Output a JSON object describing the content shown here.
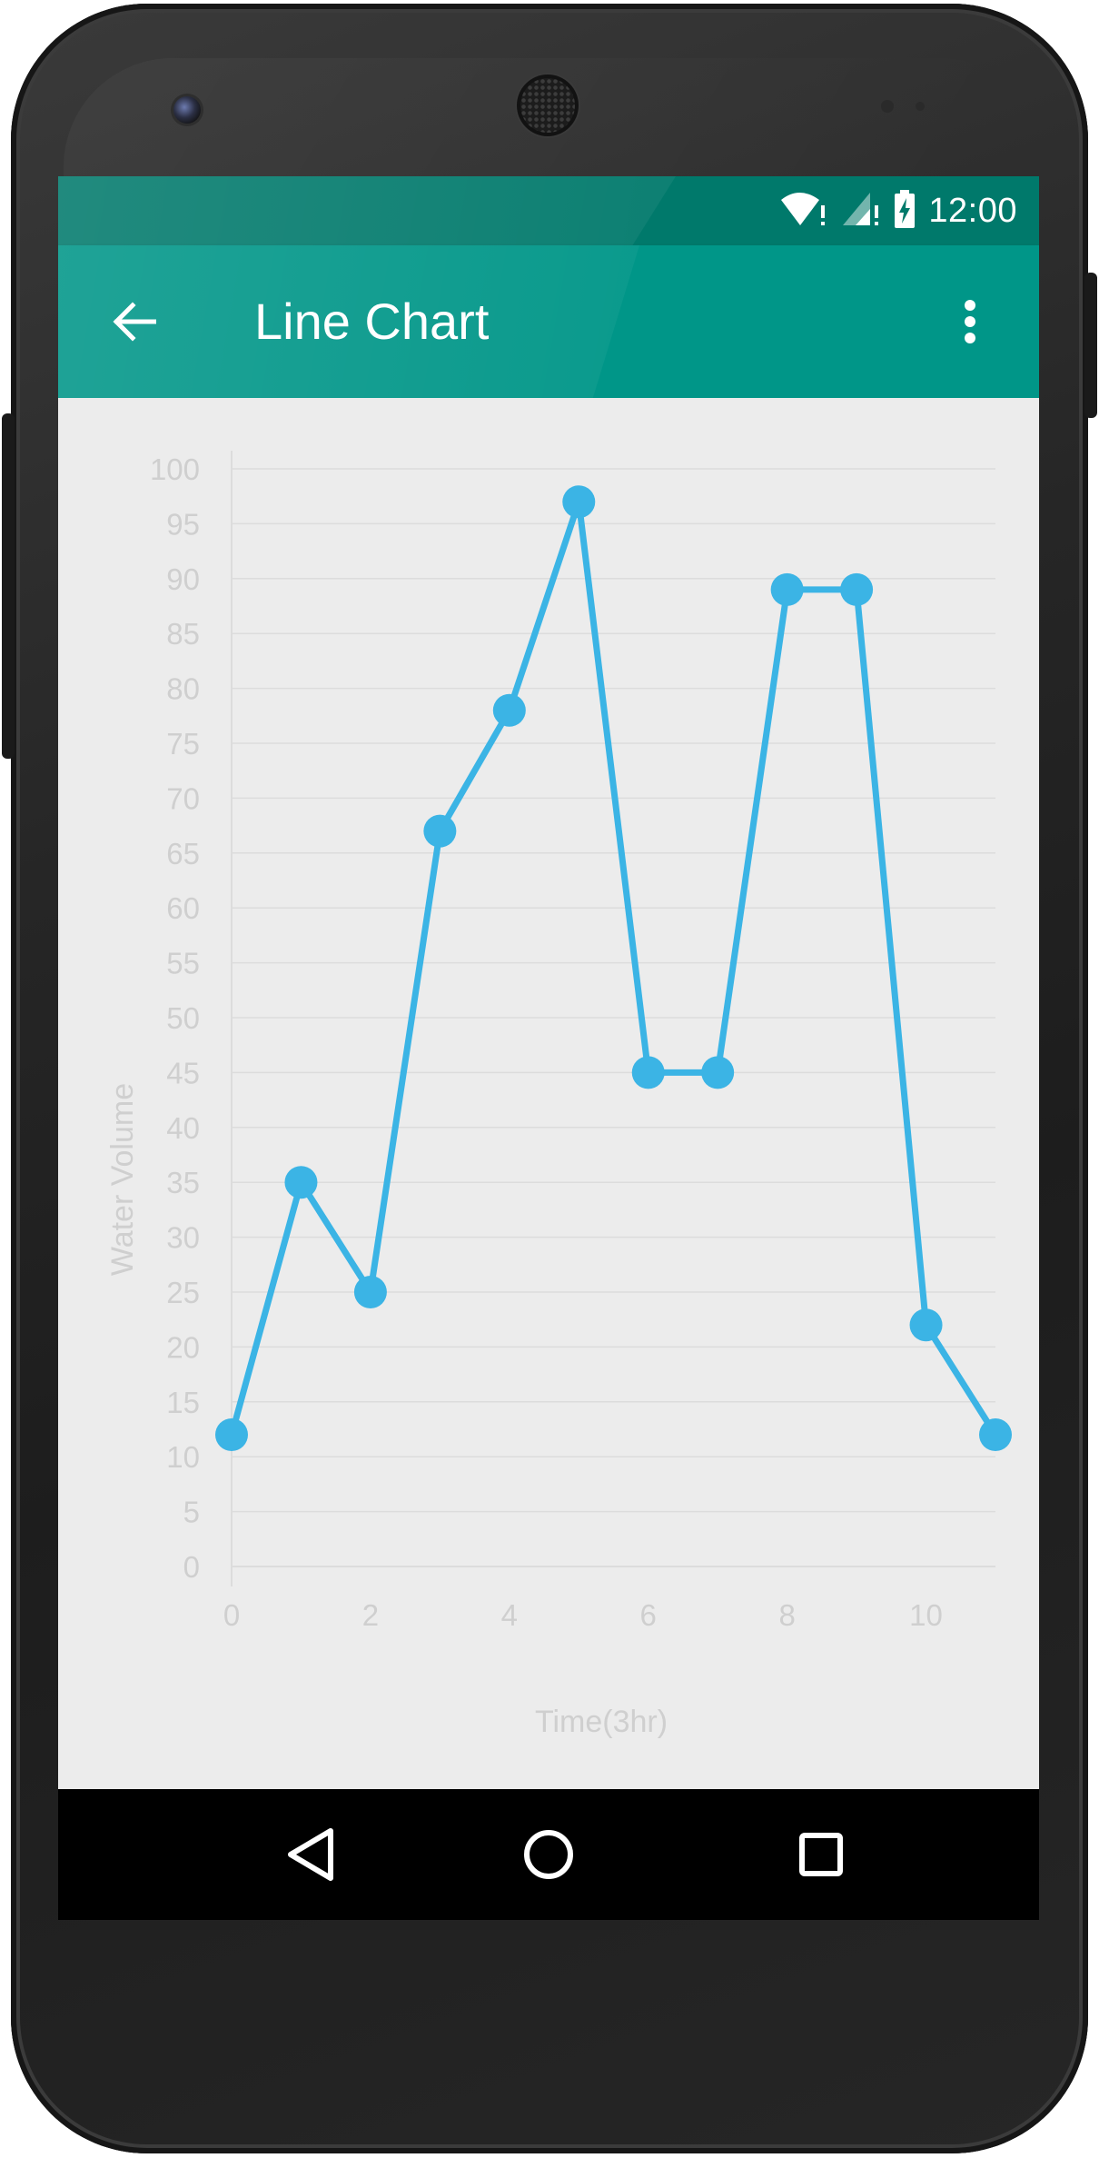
{
  "status_bar": {
    "time": "12:00",
    "icons": [
      "wifi-alert-icon",
      "signal-alert-icon",
      "battery-charging-icon"
    ]
  },
  "app_bar": {
    "title": "Line Chart",
    "back_icon": "arrow-left-icon",
    "menu_icon": "more-vert-icon"
  },
  "nav_bar": {
    "icons": [
      "back-triangle-icon",
      "home-circle-icon",
      "recents-square-icon"
    ]
  },
  "colors": {
    "status_bar": "#00796b",
    "app_bar": "#009688",
    "line": "#3bb4e5",
    "axis_text": "#cfcfcf",
    "grid": "#dcdcdc",
    "background": "#ececec"
  },
  "chart_data": {
    "type": "line",
    "title": "",
    "xlabel": "Time(3hr)",
    "ylabel": "Water Volume",
    "xlim": [
      0,
      11
    ],
    "ylim": [
      0,
      100
    ],
    "x_ticks": [
      0,
      2,
      4,
      6,
      8,
      10
    ],
    "y_ticks": [
      0,
      5,
      10,
      15,
      20,
      25,
      30,
      35,
      40,
      45,
      50,
      55,
      60,
      65,
      70,
      75,
      80,
      85,
      90,
      95,
      100
    ],
    "grid": true,
    "legend": false,
    "series": [
      {
        "x": [
          0,
          1,
          2,
          3,
          4,
          5,
          6,
          7,
          8,
          9,
          10,
          11
        ],
        "values": [
          12,
          35,
          25,
          67,
          78,
          97,
          45,
          45,
          89,
          89,
          22,
          12
        ]
      }
    ]
  }
}
